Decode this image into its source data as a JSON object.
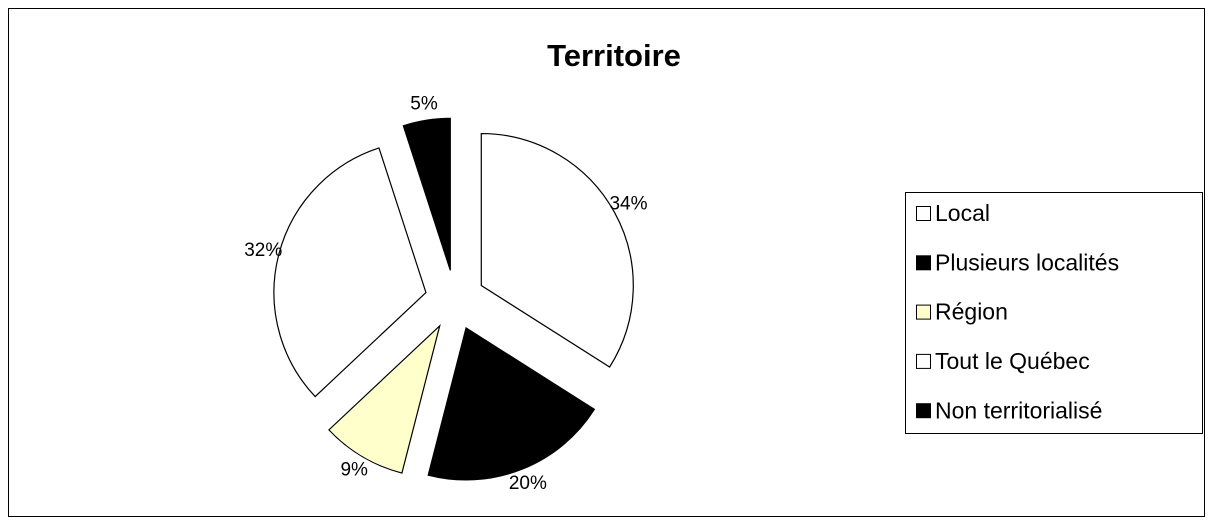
{
  "chart_data": {
    "type": "pie",
    "title": "Territoire",
    "categories": [
      "Local",
      "Plusieurs localités",
      "Région",
      "Tout le Québec",
      "Non territorialisé"
    ],
    "values": [
      34,
      20,
      9,
      32,
      5
    ],
    "value_labels": [
      "34%",
      "20%",
      "9%",
      "32%",
      "5%"
    ],
    "colors": [
      "#ffffff",
      "#000000",
      "#ffffcc",
      "#ffffff",
      "#000000"
    ],
    "legend": "right"
  }
}
